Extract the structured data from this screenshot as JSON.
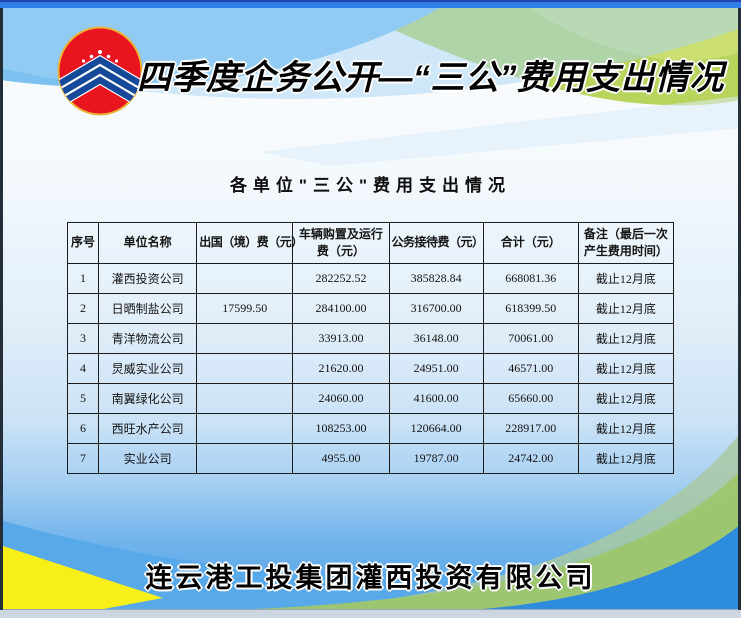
{
  "page": {
    "title": "四季度企务公开—“三公”费用支出情况",
    "subtitle": "各单位\"三公\"费用支出情况",
    "footer": "连云港工投集团灌西投资有限公司"
  },
  "logo": {
    "name": "company-emblem",
    "description": "red circle with gold rim, blue chevron stripes and white star dots"
  },
  "table": {
    "columns": [
      "序号",
      "单位名称",
      "出国（境）费（元）",
      "车辆购置及运行费（元）",
      "公务接待费（元）",
      "合计（元）",
      "备注（最后一次产生费用时间）"
    ],
    "rows": [
      [
        "1",
        "灌西投资公司",
        "",
        "282252.52",
        "385828.84",
        "668081.36",
        "截止12月底"
      ],
      [
        "2",
        "日晒制盐公司",
        "17599.50",
        "284100.00",
        "316700.00",
        "618399.50",
        "截止12月底"
      ],
      [
        "3",
        "青洋物流公司",
        "",
        "33913.00",
        "36148.00",
        "70061.00",
        "截止12月底"
      ],
      [
        "4",
        "炅威实业公司",
        "",
        "21620.00",
        "24951.00",
        "46571.00",
        "截止12月底"
      ],
      [
        "5",
        "南翼绿化公司",
        "",
        "24060.00",
        "41600.00",
        "65660.00",
        "截止12月底"
      ],
      [
        "6",
        "西旺水产公司",
        "",
        "108253.00",
        "120664.00",
        "228917.00",
        "截止12月底"
      ],
      [
        "7",
        "实业公司",
        "",
        "4955.00",
        "19787.00",
        "24742.00",
        "截止12月底"
      ]
    ]
  },
  "colors": {
    "top_strip_blue": "#2e7ee4",
    "wave_sky_blue": "#7dc1f0",
    "wave_green": "#b9d45c",
    "bottom_blue": "#58a9ea",
    "bottom_deep_blue": "#2e8cdc",
    "corner_yellow": "#f8ef19",
    "logo_red": "#e8141e",
    "logo_ring_gold": "#edb23a",
    "logo_stripe_blue": "#17499a",
    "table_border": "#1c1c1c"
  }
}
